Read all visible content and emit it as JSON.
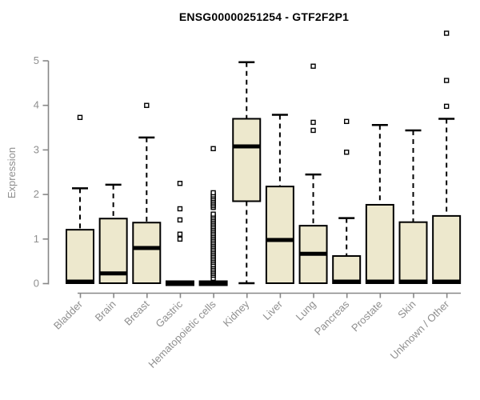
{
  "colors": {
    "box_fill": "#EDE8CD",
    "box_stroke": "#000000",
    "median": "#000000",
    "outlier_stroke": "#000000",
    "outlier_fill": "#ffffff",
    "axis": "#878787",
    "tick_label": "#8f8f8f",
    "title": "#000000"
  },
  "chart_data": {
    "type": "boxplot",
    "title": "ENSG00000251254 - GTF2F2P1",
    "ylabel": "Expression",
    "xlabel": "",
    "ylim": [
      0,
      5.8
    ],
    "yticks": [
      0,
      1,
      2,
      3,
      4,
      5
    ],
    "grid": false,
    "legend": false,
    "categories": [
      "Bladder",
      "Brain",
      "Breast",
      "Gastric",
      "Hematopoietic cells",
      "Kidney",
      "Liver",
      "Lung",
      "Pancreas",
      "Prostate",
      "Skin",
      "Unknown / Other"
    ],
    "series": [
      {
        "name": "Bladder",
        "q1": 0,
        "median": 0.03,
        "q3": 1.2,
        "whisker_low": 0,
        "whisker_high": 2.13,
        "outliers": [
          3.72
        ]
      },
      {
        "name": "Brain",
        "q1": 0,
        "median": 0.22,
        "q3": 1.45,
        "whisker_low": 0,
        "whisker_high": 2.21,
        "outliers": []
      },
      {
        "name": "Breast",
        "q1": 0,
        "median": 0.79,
        "q3": 1.36,
        "whisker_low": 0,
        "whisker_high": 3.27,
        "outliers": [
          3.99
        ]
      },
      {
        "name": "Gastric",
        "q1": 0,
        "median": 0,
        "q3": 0,
        "whisker_low": 0,
        "whisker_high": 0,
        "outliers": [
          0.99,
          1.1,
          1.42,
          1.67,
          2.24
        ]
      },
      {
        "name": "Hematopoietic cells",
        "q1": 0,
        "median": 0,
        "q3": 0,
        "whisker_low": 0,
        "whisker_high": 0,
        "outliers": [
          0.11,
          0.18,
          0.22,
          0.26,
          0.3,
          0.34,
          0.38,
          0.42,
          0.47,
          0.51,
          0.55,
          0.59,
          0.63,
          0.67,
          0.71,
          0.75,
          0.79,
          0.83,
          0.87,
          0.91,
          0.95,
          0.99,
          1.03,
          1.07,
          1.11,
          1.15,
          1.19,
          1.23,
          1.27,
          1.31,
          1.35,
          1.39,
          1.43,
          1.47,
          1.51,
          1.55,
          1.7,
          1.74,
          1.78,
          1.82,
          1.86,
          1.9,
          1.94,
          1.98,
          2.03,
          3.02
        ]
      },
      {
        "name": "Kidney",
        "q1": 1.84,
        "median": 3.07,
        "q3": 3.69,
        "whisker_low": 0,
        "whisker_high": 4.96,
        "outliers": []
      },
      {
        "name": "Liver",
        "q1": 0,
        "median": 0.97,
        "q3": 2.17,
        "whisker_low": 0,
        "whisker_high": 3.78,
        "outliers": []
      },
      {
        "name": "Lung",
        "q1": 0,
        "median": 0.66,
        "q3": 1.29,
        "whisker_low": 0,
        "whisker_high": 2.44,
        "outliers": [
          3.43,
          3.61,
          4.87
        ]
      },
      {
        "name": "Pancreas",
        "q1": 0,
        "median": 0.03,
        "q3": 0.61,
        "whisker_low": 0,
        "whisker_high": 1.46,
        "outliers": [
          2.94,
          3.63
        ]
      },
      {
        "name": "Prostate",
        "q1": 0,
        "median": 0.03,
        "q3": 1.76,
        "whisker_low": 0,
        "whisker_high": 3.55,
        "outliers": []
      },
      {
        "name": "Skin",
        "q1": 0,
        "median": 0.03,
        "q3": 1.37,
        "whisker_low": 0,
        "whisker_high": 3.43,
        "outliers": []
      },
      {
        "name": "Unknown / Other",
        "q1": 0,
        "median": 0.03,
        "q3": 1.51,
        "whisker_low": 0,
        "whisker_high": 3.69,
        "outliers": [
          3.97,
          4.55,
          5.61
        ]
      }
    ]
  }
}
